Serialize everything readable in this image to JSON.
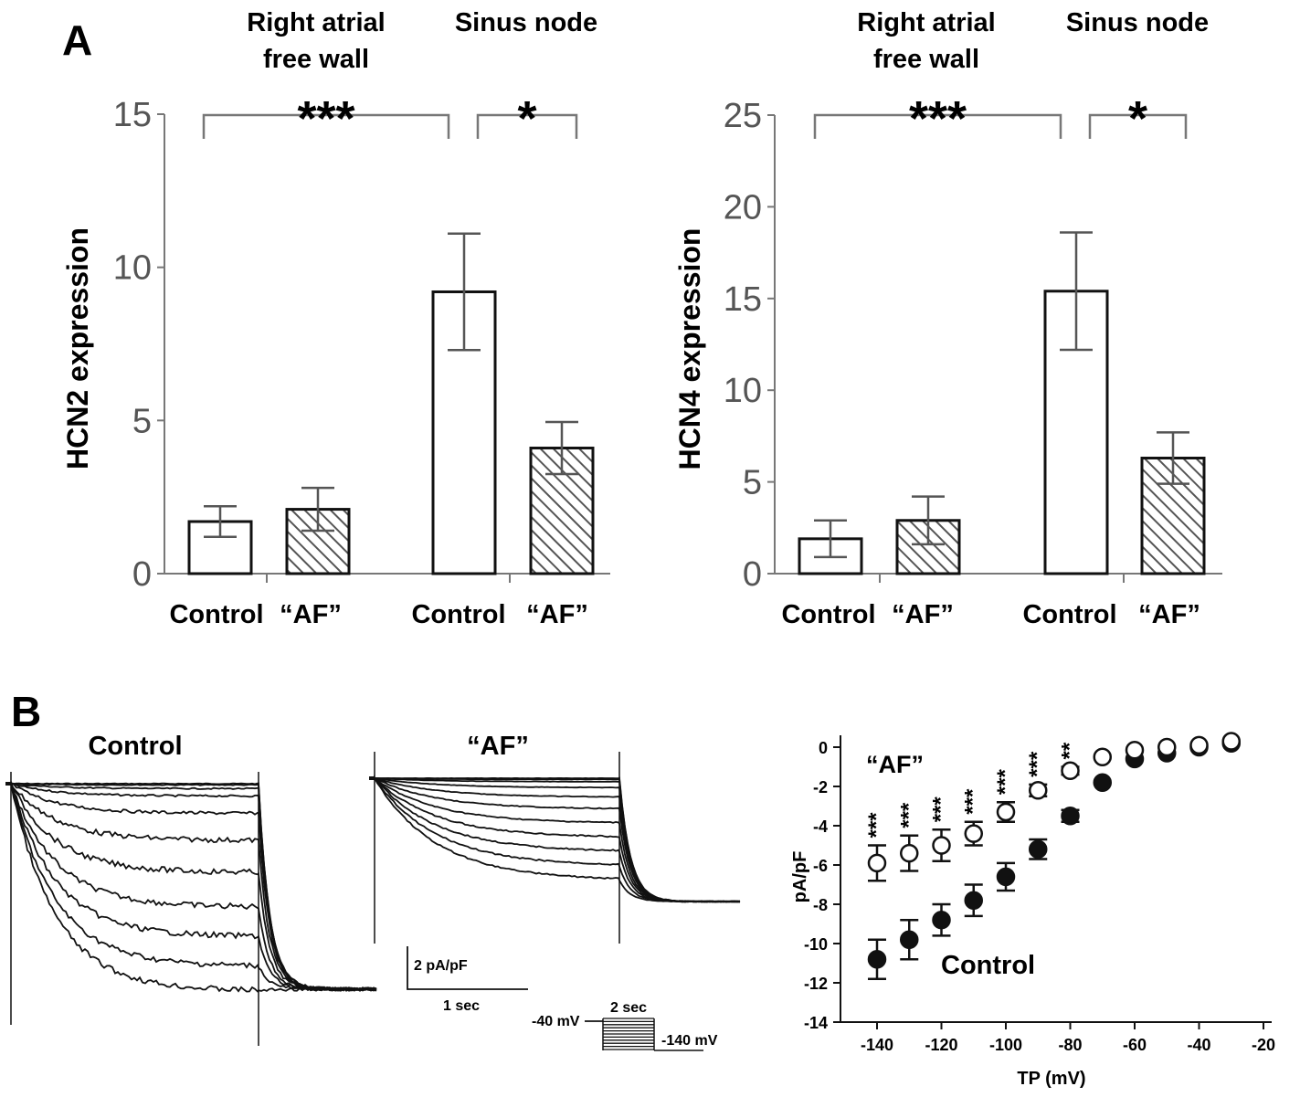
{
  "panel_labels": {
    "a": "A",
    "b": "B"
  },
  "chart_data": [
    {
      "type": "bar",
      "ylabel": "HCN2 expression",
      "ylim": [
        0,
        15
      ],
      "yticks": [
        "0",
        "5",
        "10",
        "15"
      ],
      "categories": [
        "Control",
        "“AF”",
        "Control",
        "“AF”"
      ],
      "groups": [
        "Right atrial free wall",
        "Sinus node"
      ],
      "values": [
        1.7,
        2.1,
        9.2,
        4.1
      ],
      "errors": [
        0.5,
        0.7,
        1.9,
        0.85
      ],
      "fills": [
        "open",
        "hatched",
        "open",
        "hatched"
      ],
      "significance": [
        "***",
        "*"
      ]
    },
    {
      "type": "bar",
      "ylabel": "HCN4 expression",
      "ylim": [
        0,
        25
      ],
      "yticks": [
        "0",
        "5",
        "10",
        "15",
        "20",
        "25"
      ],
      "categories": [
        "Control",
        "“AF”",
        "Control",
        "“AF”"
      ],
      "groups": [
        "Right atrial free wall",
        "Sinus node"
      ],
      "values": [
        1.9,
        2.9,
        15.4,
        6.3
      ],
      "errors": [
        1.0,
        1.3,
        3.2,
        1.4
      ],
      "fills": [
        "open",
        "hatched",
        "open",
        "hatched"
      ],
      "significance": [
        "***",
        "*"
      ]
    },
    {
      "type": "line",
      "traces_titles": [
        "Control",
        "“AF”"
      ],
      "scalebar": {
        "y": "2 pA/pF",
        "x": "1 sec"
      },
      "protocol": {
        "duration": "2 sec",
        "holding": "-40 mV",
        "step": "-140 mV"
      },
      "control_trace_levels": [
        0,
        -0.05,
        -0.2,
        -0.5,
        -1.2,
        -2.3,
        -3.6,
        -5.0,
        -6.2,
        -7.4,
        -8.4
      ],
      "af_trace_levels": [
        0,
        -0.05,
        -0.15,
        -0.4,
        -0.8,
        -1.3,
        -1.9,
        -2.5,
        -3.1,
        -3.7,
        -4.3
      ]
    },
    {
      "type": "scatter",
      "xlabel": "TP (mV)",
      "ylabel": "pA/pF",
      "xlim": [
        -145,
        -20
      ],
      "ylim": [
        -14,
        0.5
      ],
      "xticks": [
        "-140",
        "-120",
        "-100",
        "-80",
        "-60",
        "-40",
        "-20"
      ],
      "yticks": [
        "0",
        "-2",
        "-4",
        "-6",
        "-8",
        "-10",
        "-12",
        "-14"
      ],
      "x": [
        -140,
        -130,
        -120,
        -110,
        -100,
        -90,
        -80,
        -70,
        -60,
        -50,
        -40,
        -30
      ],
      "series": [
        {
          "name": "“AF”",
          "marker": "open",
          "values": [
            -5.9,
            -5.4,
            -5.0,
            -4.4,
            -3.3,
            -2.2,
            -1.2,
            -0.5,
            -0.15,
            0.0,
            0.1,
            0.3
          ],
          "errors": [
            0.9,
            0.9,
            0.8,
            0.6,
            0.5,
            0.3,
            0.2,
            0,
            0,
            0,
            0,
            0
          ],
          "significance": [
            "***",
            "***",
            "***",
            "***",
            "***",
            "***",
            "**",
            "",
            "",
            "",
            "",
            ""
          ]
        },
        {
          "name": "Control",
          "marker": "filled",
          "values": [
            -10.8,
            -9.8,
            -8.8,
            -7.8,
            -6.6,
            -5.2,
            -3.5,
            -1.8,
            -0.6,
            -0.3,
            0.0,
            0.2
          ],
          "errors": [
            1.0,
            1.0,
            0.8,
            0.8,
            0.7,
            0.5,
            0.3,
            0,
            0,
            0,
            0,
            0
          ]
        }
      ]
    }
  ]
}
